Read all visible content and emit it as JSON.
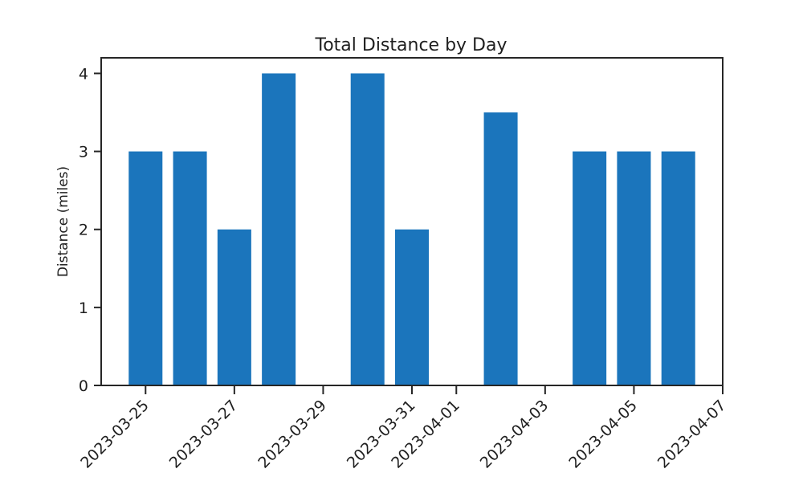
{
  "chart_data": {
    "type": "bar",
    "title": "Total Distance by Day",
    "xlabel": "",
    "ylabel": "Distance (miles)",
    "x_axis": {
      "kind": "date",
      "range": [
        "2023-03-24",
        "2023-04-07"
      ],
      "tick_labels": [
        "2023-03-25",
        "2023-03-27",
        "2023-03-29",
        "2023-03-31",
        "2023-04-01",
        "2023-04-03",
        "2023-04-05",
        "2023-04-07"
      ]
    },
    "ylim": [
      0,
      4.2
    ],
    "yticks": [
      0,
      1,
      2,
      3,
      4
    ],
    "grid": false,
    "legend": "none",
    "bar_color": "#1b75bc",
    "points": [
      {
        "x": "2023-03-25",
        "y": 3.0
      },
      {
        "x": "2023-03-26",
        "y": 3.0
      },
      {
        "x": "2023-03-27",
        "y": 2.0
      },
      {
        "x": "2023-03-28",
        "y": 4.0
      },
      {
        "x": "2023-03-30",
        "y": 4.0
      },
      {
        "x": "2023-03-31",
        "y": 2.0
      },
      {
        "x": "2023-04-02",
        "y": 3.5
      },
      {
        "x": "2023-04-04",
        "y": 3.0
      },
      {
        "x": "2023-04-05",
        "y": 3.0
      },
      {
        "x": "2023-04-06",
        "y": 3.0
      }
    ]
  }
}
